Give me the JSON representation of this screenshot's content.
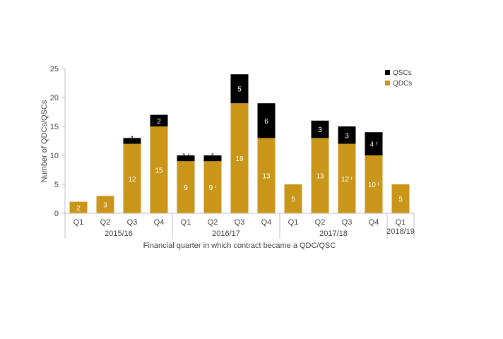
{
  "chart_data": {
    "type": "bar",
    "stacked": true,
    "categories": [
      "Q1",
      "Q2",
      "Q3",
      "Q4",
      "Q1",
      "Q2",
      "Q3",
      "Q4",
      "Q1",
      "Q2",
      "Q3",
      "Q4",
      "Q1"
    ],
    "groups": [
      {
        "label": "2015/16",
        "count": 4
      },
      {
        "label": "2016/17",
        "count": 4
      },
      {
        "label": "2017/18",
        "count": 4
      },
      {
        "label": "2018/19",
        "count": 1
      }
    ],
    "series": [
      {
        "name": "QDCs",
        "color": "#c9961a",
        "label_color": "#ffffff",
        "values": [
          2,
          3,
          12,
          15,
          9,
          9,
          19,
          13,
          5,
          13,
          12,
          10,
          5
        ],
        "labels": [
          "2",
          "3",
          "12",
          "15",
          "9",
          "9 ʳ",
          "19",
          "13",
          "5",
          "13",
          "12 ʳ",
          "10 ʳ",
          "5"
        ]
      },
      {
        "name": "QSCs",
        "color": "#000000",
        "label_color": "#ffffff",
        "values": [
          0,
          0,
          1,
          2,
          1,
          1,
          5,
          6,
          0,
          3,
          3,
          4,
          0
        ],
        "labels": [
          "",
          "",
          "1",
          "2",
          "1 ʳ",
          "1",
          "5",
          "6",
          "",
          "3",
          "3",
          "4 ʳ",
          ""
        ]
      }
    ],
    "ylabel": "Number of QDCs/QSCs",
    "xlabel": "Financial quarter in which contract became a QDC/QSC",
    "ylim": [
      0,
      25
    ],
    "yticks": [
      0,
      5,
      10,
      15,
      20,
      25
    ],
    "legend": "top-right",
    "grid": false
  }
}
